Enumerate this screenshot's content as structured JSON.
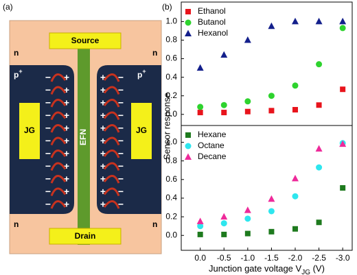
{
  "diagram": {
    "panel_label": "(a)",
    "source": "Source",
    "drain": "Drain",
    "n": "n",
    "p": "p",
    "p_sup": "+",
    "jg": "JG",
    "efn": "EFN",
    "minus": "−",
    "plus": "+"
  },
  "panel_label_b": "(b)",
  "chart_data": [
    {
      "type": "scatter",
      "ylabel": "Sensor response",
      "x": [
        0,
        -0.5,
        -1.0,
        -1.5,
        -2.0,
        -2.5,
        -3.0
      ],
      "xlim": [
        0.4,
        -3.2
      ],
      "ylim": [
        -0.12,
        1.21
      ],
      "yticks": [
        {
          "value": 0,
          "label": "0.0"
        },
        0.2,
        0.4,
        0.6,
        0.8,
        {
          "value": 1,
          "label": "1.0"
        }
      ],
      "legend": "upper left",
      "series": [
        {
          "name": "Ethanol",
          "color": "#e8141c",
          "marker": "square",
          "values": [
            0.02,
            0.02,
            0.03,
            0.04,
            0.05,
            0.1,
            0.27
          ]
        },
        {
          "name": "Butanol",
          "color": "#2ed32e",
          "marker": "circle",
          "values": [
            0.08,
            0.1,
            0.14,
            0.2,
            0.31,
            0.54,
            0.93
          ]
        },
        {
          "name": "Hexanol",
          "color": "#14208c",
          "marker": "triangle",
          "values": [
            0.5,
            0.64,
            0.8,
            0.95,
            1.0,
            1.0,
            1.0
          ]
        }
      ]
    },
    {
      "type": "scatter",
      "xlabel": "Junction gate voltage V",
      "xlabel_sub": "JG",
      "xlabel_tail": " (V)",
      "x": [
        0,
        -0.5,
        -1.0,
        -1.5,
        -2.0,
        -2.5,
        -3.0
      ],
      "xlim": [
        0.4,
        -3.2
      ],
      "ylim": [
        -0.16,
        1.18
      ],
      "xticks": [
        {
          "value": 0,
          "label": "0.0"
        },
        -0.5,
        {
          "value": -1,
          "label": "-1.0"
        },
        -1.5,
        {
          "value": -2,
          "label": "-2.0"
        },
        -2.5,
        {
          "value": -3,
          "label": "-3.0"
        }
      ],
      "yticks": [
        {
          "value": 0,
          "label": "0.0"
        },
        0.2,
        0.4,
        0.6,
        0.8,
        {
          "value": 1,
          "label": "1.0"
        }
      ],
      "legend": "upper left",
      "series": [
        {
          "name": "Hexane",
          "color": "#1e7a1e",
          "marker": "square",
          "values": [
            0.01,
            0.01,
            0.02,
            0.04,
            0.07,
            0.14,
            0.51
          ]
        },
        {
          "name": "Octane",
          "color": "#2ee6ee",
          "marker": "circle",
          "values": [
            0.1,
            0.13,
            0.18,
            0.26,
            0.42,
            0.73,
            0.99
          ]
        },
        {
          "name": "Decane",
          "color": "#ee2a9a",
          "marker": "triangle",
          "values": [
            0.15,
            0.2,
            0.27,
            0.39,
            0.61,
            0.93,
            0.98
          ]
        }
      ]
    }
  ]
}
